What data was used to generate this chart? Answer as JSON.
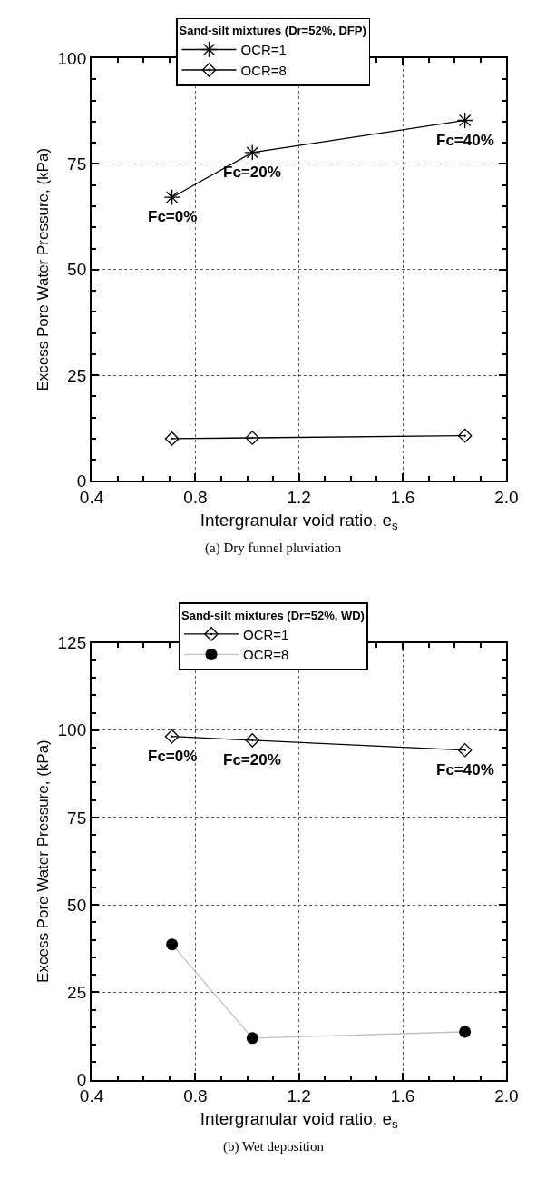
{
  "chart_data": [
    {
      "type": "line",
      "xlabel": "Intergranular void ratio, e$_{s}$",
      "ylabel": "Excess Pore Water Pressure, (kPa)",
      "legend_title": "Sand-silt mixtures (Dr=52%, DFP)",
      "legend": "top",
      "grid": true,
      "xlim": [
        0.4,
        2.0
      ],
      "xticks": [
        {
          "value": 0.4,
          "label": "0.4"
        },
        {
          "value": 0.8,
          "label": "0.8"
        },
        {
          "value": 1.2,
          "label": "1.2"
        },
        {
          "value": 1.6,
          "label": "1.6"
        },
        {
          "value": 2.0,
          "label": "2.0"
        }
      ],
      "ylim": [
        0,
        100
      ],
      "yticks": [
        0,
        25,
        50,
        75,
        100
      ],
      "x": [
        0.71,
        1.02,
        1.84
      ],
      "series": [
        {
          "name": "OCR=1",
          "color": "#000000",
          "marker": "cross",
          "values": [
            67.1,
            77.7,
            85.3
          ]
        },
        {
          "name": "OCR=8",
          "color": "#000000",
          "marker": "diamond",
          "values": [
            10.0,
            10.2,
            10.7
          ]
        }
      ],
      "annotations": [
        {
          "text": "Fc=0%",
          "x": 0.71,
          "y": 67.1
        },
        {
          "text": "Fc=20%",
          "x": 1.02,
          "y": 77.7
        },
        {
          "text": "Fc=40%",
          "x": 1.84,
          "y": 85.3
        },
        "(a) Dry funnel pluviation"
      ]
    },
    {
      "type": "line",
      "xlabel": "Intergranular void ratio, e$_{s}$",
      "ylabel": "Excess Pore Water Pressure, (kPa)",
      "legend_title": "Sand-silt mixtures (Dr=52%, WD)",
      "legend": "top",
      "grid": true,
      "xlim": [
        0.4,
        2.0
      ],
      "xticks": [
        {
          "value": 0.4,
          "label": "0.4"
        },
        {
          "value": 0.8,
          "label": "0.8"
        },
        {
          "value": 1.2,
          "label": "1.2"
        },
        {
          "value": 1.6,
          "label": "1.6"
        },
        {
          "value": 2.0,
          "label": "2.0"
        }
      ],
      "ylim": [
        0,
        125
      ],
      "yticks": [
        0,
        25,
        50,
        75,
        100,
        125
      ],
      "x": [
        0.71,
        1.02,
        1.84
      ],
      "series": [
        {
          "name": "OCR=1",
          "color": "#000000",
          "marker": "diamond",
          "values": [
            98.2,
            97.1,
            94.3
          ]
        },
        {
          "name": "OCR=8",
          "color": "#c0c0c0",
          "colors": [
            "#000000",
            "#000000",
            "#000000"
          ],
          "marker": "circle",
          "values": [
            38.7,
            11.9,
            13.7
          ]
        }
      ],
      "annotations": [
        {
          "text": "Fc=0%",
          "x": 0.71,
          "y": 98.2
        },
        {
          "text": "Fc=20%",
          "x": 1.02,
          "y": 97.1
        },
        {
          "text": "Fc=40%",
          "x": 1.84,
          "y": 94.3
        },
        "(b) Wet deposition"
      ]
    }
  ]
}
